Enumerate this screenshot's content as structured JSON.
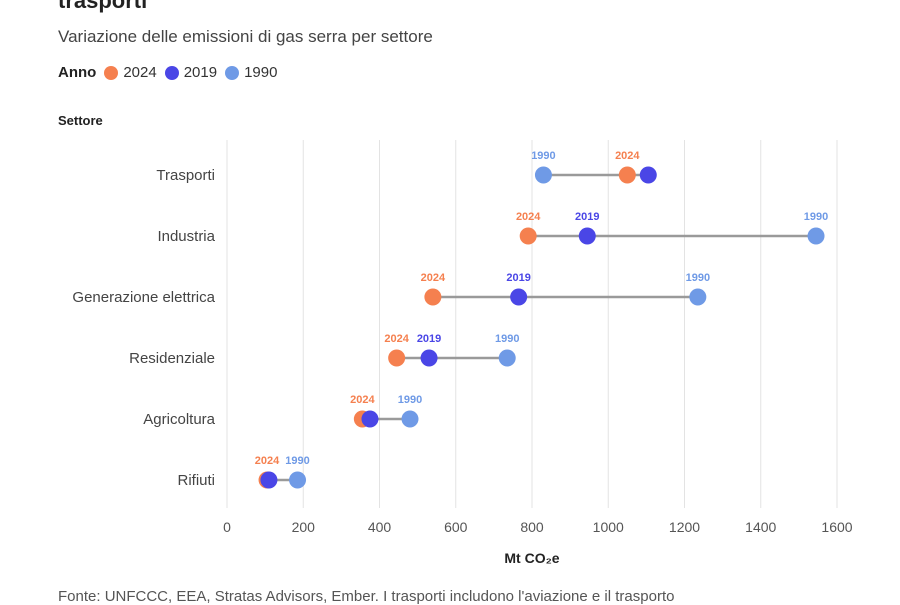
{
  "header": {
    "title": "trasporti",
    "subtitle": "Variazione delle emissioni di gas serra per settore"
  },
  "legend": {
    "title": "Anno",
    "items": [
      {
        "label": "2024",
        "color": "#f5804f"
      },
      {
        "label": "2019",
        "color": "#4a46e6"
      },
      {
        "label": "1990",
        "color": "#6f9ae6"
      }
    ]
  },
  "footer": {
    "source": "Fonte: UNFCCC, EEA, Stratas Advisors, Ember. I trasporti includono l'aviazione e il trasporto"
  },
  "chart_data": {
    "type": "dumbbell",
    "ylabel": "Settore",
    "xlabel": "Mt CO₂e",
    "xlim": [
      0,
      1600
    ],
    "xticks": [
      0,
      200,
      400,
      600,
      800,
      1000,
      1200,
      1400,
      1600
    ],
    "grid": true,
    "categories": [
      "Trasporti",
      "Industria",
      "Generazione elettrica",
      "Residenziale",
      "Agricoltura",
      "Rifiuti"
    ],
    "series": [
      {
        "name": "2024",
        "color": "#f5804f",
        "values": [
          1050,
          790,
          540,
          445,
          355,
          105
        ]
      },
      {
        "name": "2019",
        "color": "#4a46e6",
        "values": [
          1105,
          945,
          765,
          530,
          375,
          110
        ]
      },
      {
        "name": "1990",
        "color": "#6f9ae6",
        "values": [
          830,
          1545,
          1235,
          735,
          480,
          185
        ]
      }
    ],
    "data_labels": [
      {
        "category": "Trasporti",
        "series": [
          "1990",
          "2024"
        ]
      },
      {
        "category": "Industria",
        "series": [
          "2024",
          "2019",
          "1990"
        ]
      },
      {
        "category": "Generazione elettrica",
        "series": [
          "2024",
          "2019",
          "1990"
        ]
      },
      {
        "category": "Residenziale",
        "series": [
          "2024",
          "2019",
          "1990"
        ]
      },
      {
        "category": "Agricoltura",
        "series": [
          "2024",
          "1990"
        ]
      },
      {
        "category": "Rifiuti",
        "series": [
          "2024",
          "1990"
        ]
      }
    ]
  }
}
